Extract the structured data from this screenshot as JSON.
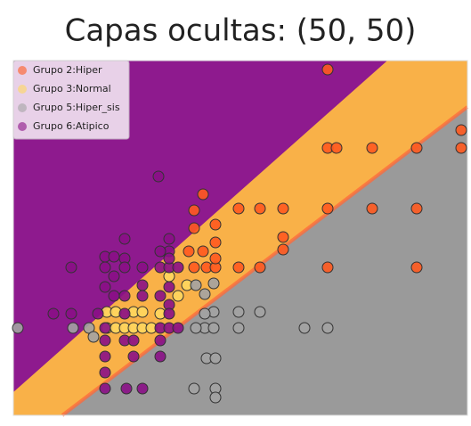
{
  "chart_data": {
    "type": "scatter",
    "title": "Capas ocultas: (50, 50)",
    "xlim": [
      0,
      510
    ],
    "ylim": [
      0,
      398
    ],
    "legend": "upper left",
    "series": [
      {
        "name": "Grupo 2:Hiper",
        "color": "#ff5a1f",
        "x": [
          353,
          353,
          363,
          403,
          453,
          503,
          503,
          213,
          203,
          253,
          277,
          303,
          353,
          403,
          453,
          203,
          227,
          303,
          303,
          197,
          213,
          227,
          203,
          217,
          227,
          253,
          277,
          353,
          453,
          227
        ],
        "values": [
          388,
          300,
          300,
          300,
          300,
          320,
          300,
          248,
          230,
          232,
          232,
          232,
          232,
          232,
          232,
          210,
          214,
          200,
          186,
          184,
          184,
          194,
          166,
          166,
          166,
          166,
          166,
          166,
          166,
          176
        ]
      },
      {
        "name": "Grupo 3:Normal",
        "color": "#ffd75e",
        "x": [
          105,
          115,
          135,
          145,
          165,
          105,
          115,
          125,
          135,
          145,
          155,
          185,
          195,
          175
        ],
        "values": [
          116,
          116,
          116,
          116,
          114,
          98,
          98,
          98,
          98,
          98,
          98,
          134,
          146,
          156
        ]
      },
      {
        "name": "Grupo 5:Hiper_sis",
        "color": "#a3a3a3",
        "x": [
          225,
          215,
          205,
          225,
          215,
          215,
          225,
          205,
          253,
          277,
          253,
          327,
          353,
          217,
          227,
          203,
          227,
          227,
          5,
          67,
          85,
          90
        ],
        "values": [
          148,
          136,
          146,
          116,
          114,
          98,
          98,
          98,
          116,
          116,
          98,
          98,
          98,
          64,
          64,
          30,
          30,
          20,
          98,
          98,
          98,
          88
        ]
      },
      {
        "name": "Grupo 6:Atipico",
        "color": "#8a0f86",
        "x": [
          163,
          125,
          103,
          113,
          125,
          145,
          103,
          113,
          125,
          175,
          175,
          165,
          165,
          175,
          185,
          145,
          175,
          103,
          113,
          125,
          145,
          165,
          175,
          45,
          65,
          95,
          125,
          175,
          103,
          165,
          175,
          185,
          103,
          125,
          135,
          165,
          103,
          135,
          165,
          103,
          103,
          127,
          145,
          65,
          175
        ],
        "values": [
          268,
          198,
          178,
          178,
          176,
          166,
          166,
          156,
          166,
          198,
          184,
          184,
          166,
          166,
          166,
          146,
          144,
          144,
          134,
          134,
          134,
          134,
          124,
          114,
          114,
          114,
          114,
          114,
          98,
          98,
          98,
          98,
          84,
          84,
          84,
          84,
          66,
          66,
          66,
          48,
          30,
          30,
          30,
          166,
          176
        ]
      }
    ]
  }
}
